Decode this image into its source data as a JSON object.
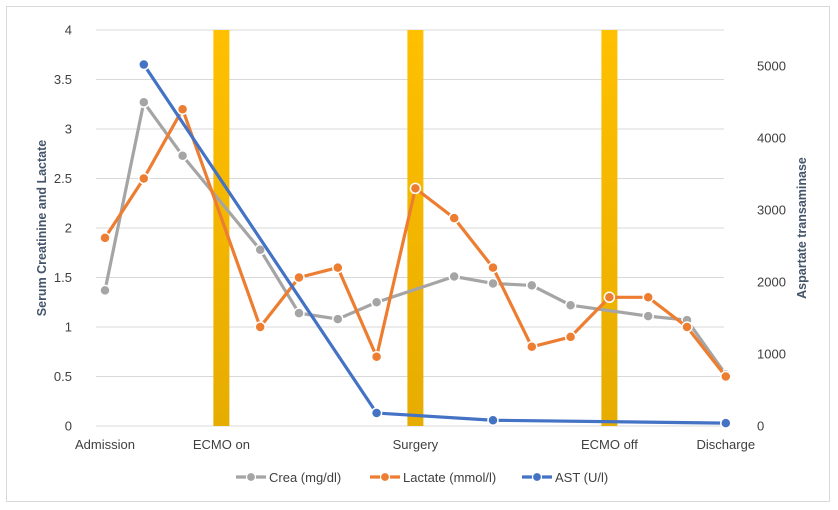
{
  "chart_data": {
    "type": "line",
    "ylabel": "Serum Creatinine and Lactate",
    "y2label": "Aspartate transaminase",
    "ylim": [
      0,
      4
    ],
    "y2lim": [
      0,
      5500
    ],
    "yticks": [
      "0",
      "0.5",
      "1",
      "1.5",
      "2",
      "2.5",
      "3",
      "3.5",
      "4"
    ],
    "y2ticks": [
      "0",
      "1000",
      "2000",
      "3000",
      "4000",
      "5000"
    ],
    "xlim": [
      0,
      17
    ],
    "xticks": [
      {
        "x": 0,
        "label": "Admission"
      },
      {
        "x": 3,
        "label": "ECMO on"
      },
      {
        "x": 8,
        "label": "Surgery"
      },
      {
        "x": 13,
        "label": "ECMO off"
      },
      {
        "x": 16,
        "label": "Discharge"
      }
    ],
    "events": [
      {
        "x": 3
      },
      {
        "x": 8
      },
      {
        "x": 13
      }
    ],
    "grid": true,
    "legend_position": "bottom",
    "series": [
      {
        "name": "Crea (mg/dl)",
        "color": "#a5a5a5",
        "axis": "left",
        "points": [
          [
            0,
            1.37
          ],
          [
            1,
            3.27
          ],
          [
            2,
            2.73
          ],
          [
            4,
            1.78
          ],
          [
            5,
            1.14
          ],
          [
            6,
            1.08
          ],
          [
            7,
            1.25
          ],
          [
            9,
            1.51
          ],
          [
            10,
            1.44
          ],
          [
            11,
            1.42
          ],
          [
            12,
            1.22
          ],
          [
            14,
            1.11
          ],
          [
            15,
            1.07
          ],
          [
            16,
            0.52
          ]
        ]
      },
      {
        "name": "Lactate (mmol/l)",
        "color": "#ed7d31",
        "axis": "left",
        "points": [
          [
            0,
            1.9
          ],
          [
            1,
            2.5
          ],
          [
            2,
            3.2
          ],
          [
            4,
            1.0
          ],
          [
            5,
            1.5
          ],
          [
            6,
            1.6
          ],
          [
            7,
            0.7
          ],
          [
            8,
            2.4
          ],
          [
            9,
            2.1
          ],
          [
            10,
            1.6
          ],
          [
            11,
            0.8
          ],
          [
            12,
            0.9
          ],
          [
            13,
            1.3
          ],
          [
            14,
            1.3
          ],
          [
            15,
            1.0
          ],
          [
            16,
            0.5
          ]
        ]
      },
      {
        "name": "AST (U/l)",
        "color": "#4472c4",
        "axis": "right",
        "points": [
          [
            1,
            5020
          ],
          [
            7,
            180
          ],
          [
            10,
            80
          ],
          [
            16,
            40
          ]
        ]
      }
    ]
  }
}
